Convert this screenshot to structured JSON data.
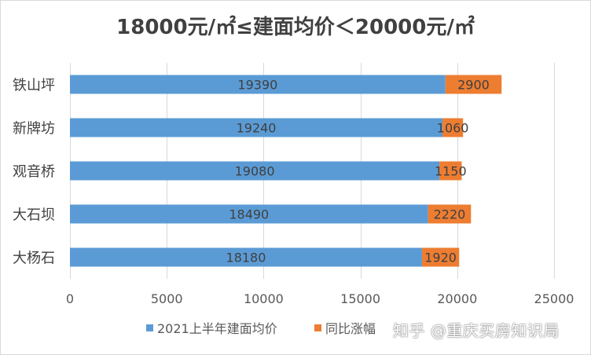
{
  "chart_data": {
    "type": "bar",
    "orientation": "horizontal",
    "stacked": true,
    "title": "18000元/㎡≤建面均价＜20000元/㎡",
    "categories": [
      "铁山坪",
      "新牌坊",
      "观音桥",
      "大石坝",
      "大杨石"
    ],
    "series": [
      {
        "name": "2021上半年建面均价",
        "values": [
          19390,
          19240,
          19080,
          18490,
          18180
        ],
        "color": "#5b9bd5"
      },
      {
        "name": "同比涨幅",
        "values": [
          2900,
          1060,
          1150,
          2220,
          1920
        ],
        "color": "#ed7d31"
      }
    ],
    "xlim": [
      0,
      25000
    ],
    "xticks": [
      "0",
      "5000",
      "10000",
      "15000",
      "20000",
      "25000"
    ],
    "grid": true,
    "legend": "bottom"
  },
  "watermark": "知乎 @重庆买房知识局"
}
